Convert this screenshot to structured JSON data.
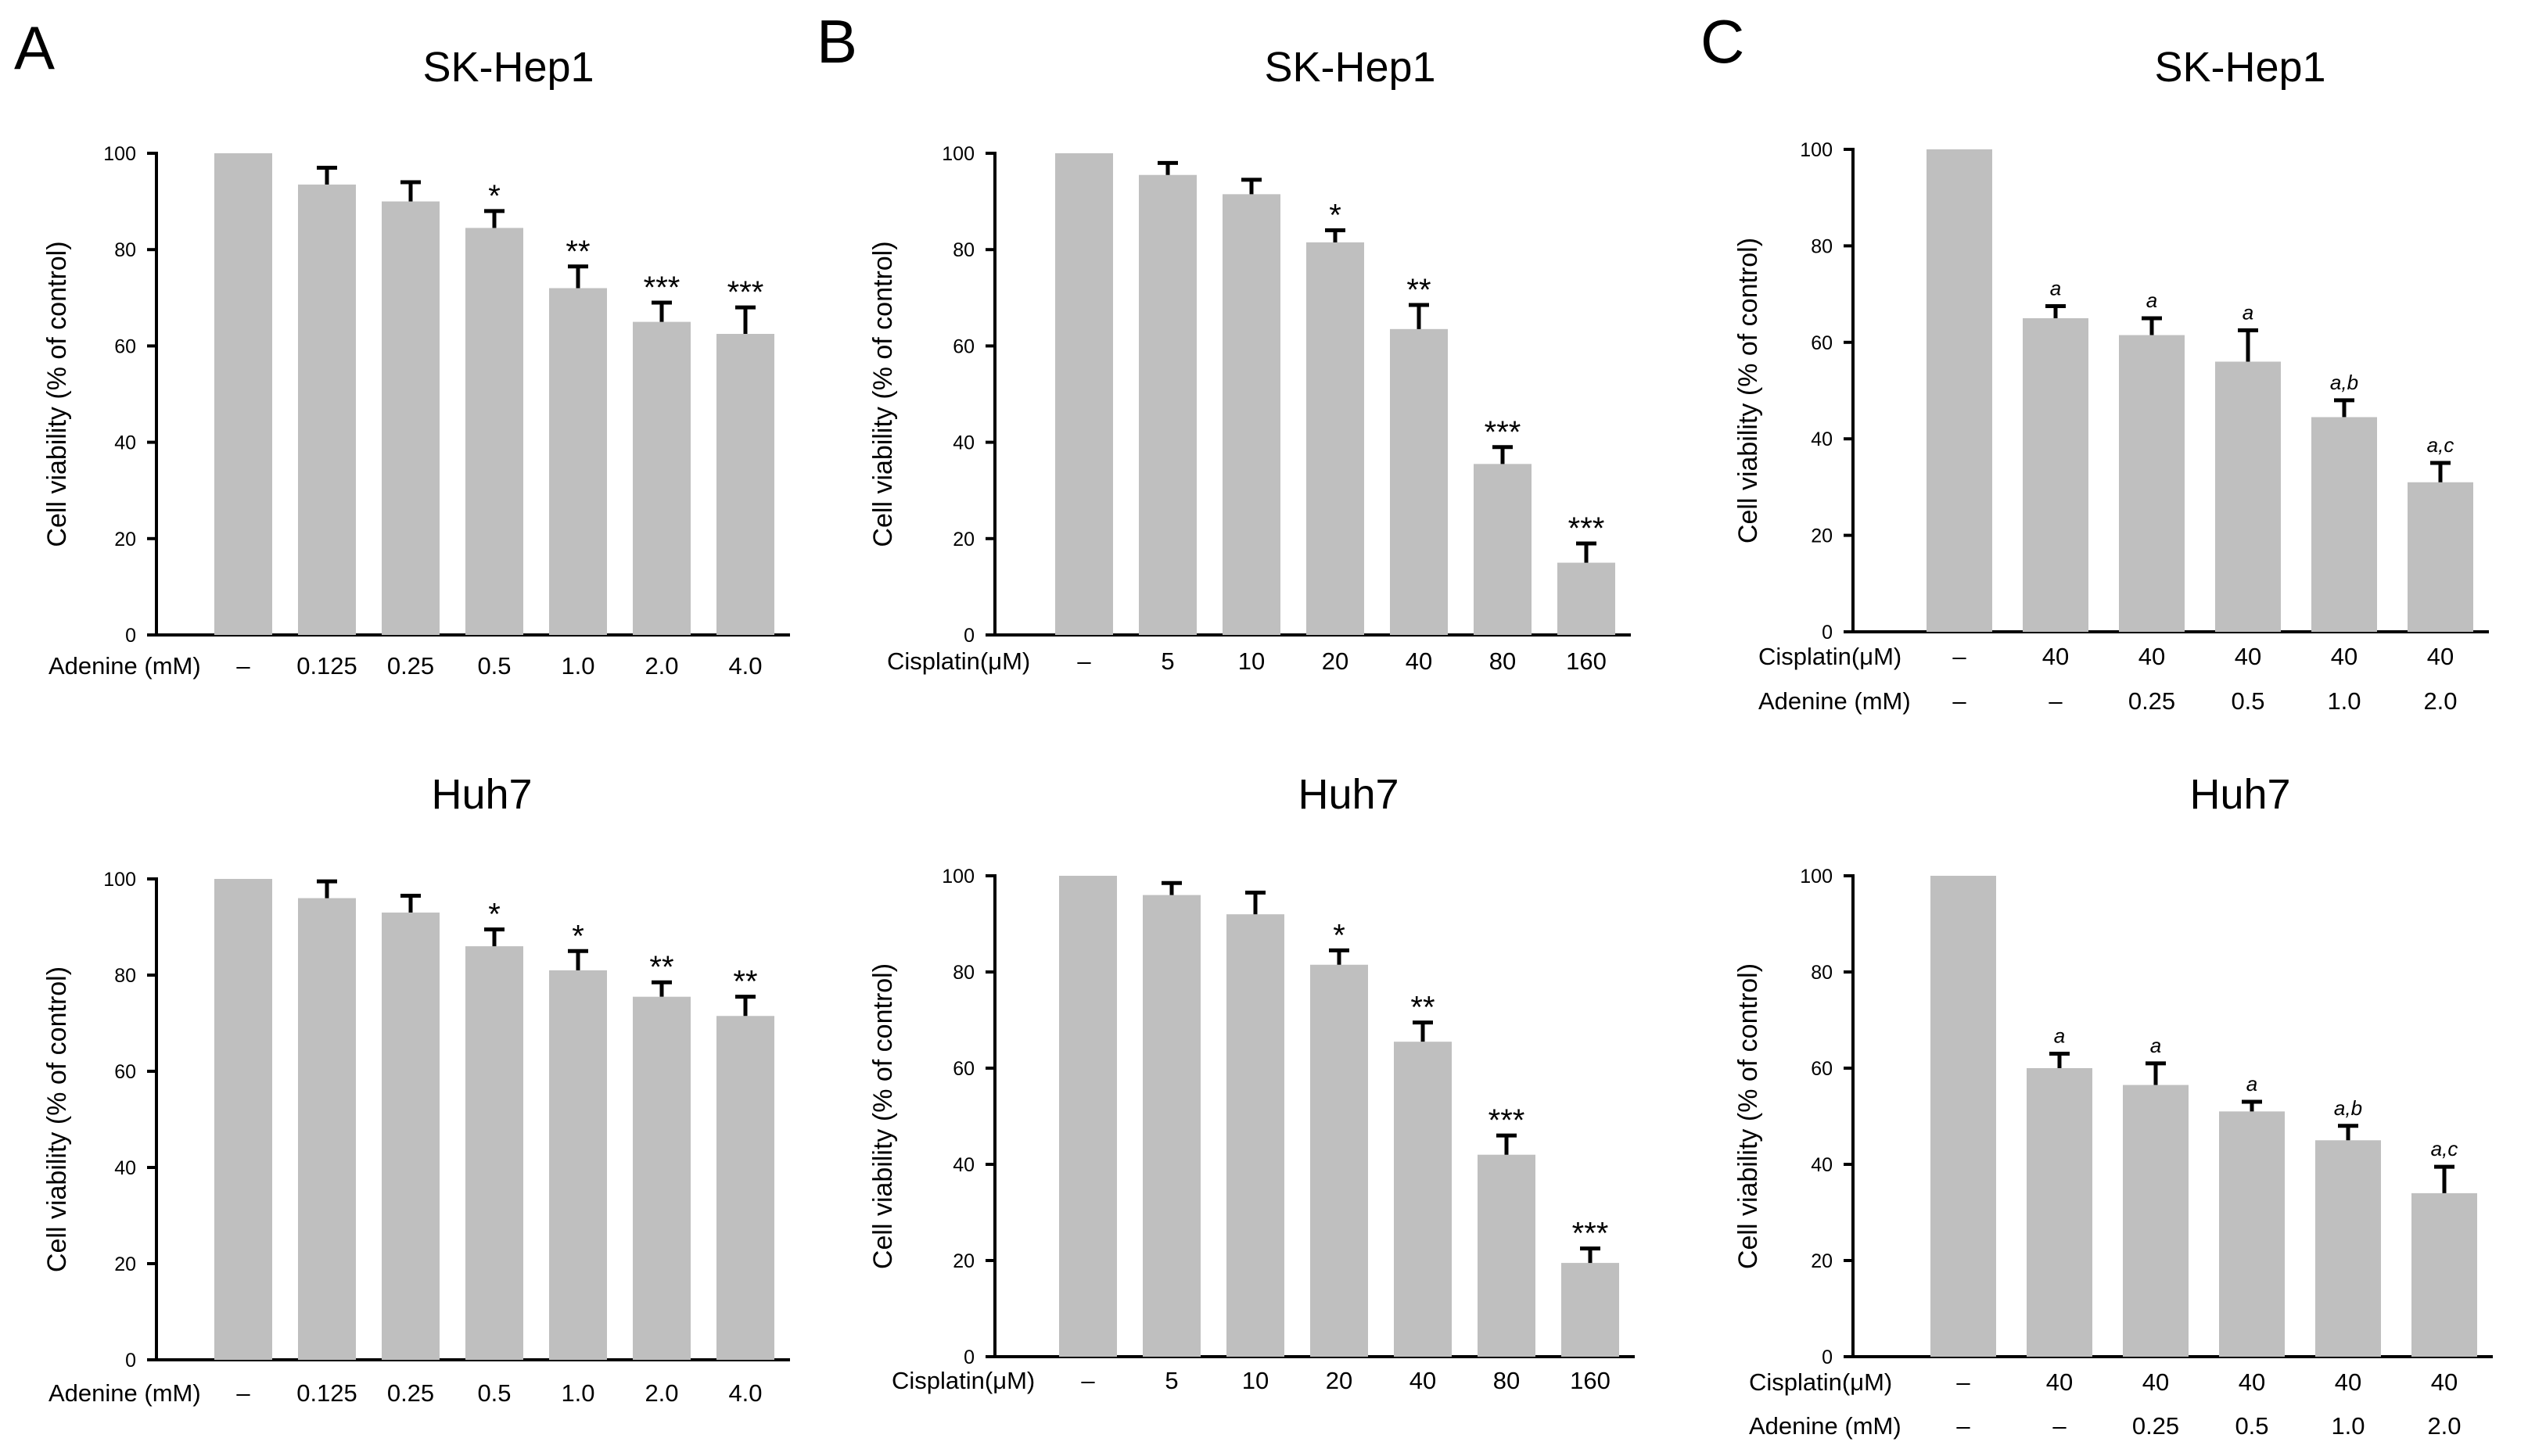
{
  "panel_labels": [
    "A",
    "B",
    "C"
  ],
  "chart_data": [
    {
      "id": "A-top",
      "type": "bar",
      "title": "SK-Hep1",
      "ylabel": "Cell viability (% of control)",
      "ylim": [
        0,
        100
      ],
      "yticks": [
        "0",
        "20",
        "40",
        "60",
        "80",
        "100"
      ],
      "rows": [
        {
          "label": "Adenine (mM)",
          "values": [
            "–",
            "0.125",
            "0.25",
            "0.5",
            "1.0",
            "2.0",
            "4.0"
          ]
        }
      ],
      "values": [
        100,
        93.5,
        90,
        84.5,
        72,
        65,
        62.5
      ],
      "errors": [
        0,
        3.5,
        4,
        3.5,
        4.5,
        4,
        5.5
      ],
      "annotations": [
        "",
        "",
        "",
        "*",
        "**",
        "***",
        "***"
      ]
    },
    {
      "id": "B-top",
      "type": "bar",
      "title": "SK-Hep1",
      "ylabel": "Cell viability (% of control)",
      "ylim": [
        0,
        100
      ],
      "yticks": [
        "0",
        "20",
        "40",
        "60",
        "80",
        "100"
      ],
      "rows": [
        {
          "label": "Cisplatin(μM)",
          "values": [
            "–",
            "5",
            "10",
            "20",
            "40",
            "80",
            "160"
          ]
        }
      ],
      "values": [
        100,
        95.5,
        91.5,
        81.5,
        63.5,
        35.5,
        15
      ],
      "errors": [
        0,
        2.5,
        3,
        2.5,
        5,
        3.5,
        4
      ],
      "annotations": [
        "",
        "",
        "",
        "*",
        "**",
        "***",
        "***"
      ]
    },
    {
      "id": "C-top",
      "type": "bar",
      "title": "SK-Hep1",
      "ylabel": "Cell viability (% of control)",
      "ylim": [
        0,
        100
      ],
      "yticks": [
        "0",
        "20",
        "40",
        "60",
        "80",
        "100"
      ],
      "rows": [
        {
          "label": "Cisplatin(μM)",
          "values": [
            "–",
            "40",
            "40",
            "40",
            "40",
            "40"
          ]
        },
        {
          "label": "Adenine (mM)",
          "values": [
            "–",
            "–",
            "0.25",
            "0.5",
            "1.0",
            "2.0"
          ]
        }
      ],
      "values": [
        100,
        65,
        61.5,
        56,
        44.5,
        31
      ],
      "errors": [
        0,
        2.5,
        3.5,
        6.5,
        3.5,
        4
      ],
      "annotations": [
        "",
        "a",
        "a",
        "a",
        "a,b",
        "a,c"
      ]
    },
    {
      "id": "A-bottom",
      "type": "bar",
      "title": "Huh7",
      "ylabel": "Cell viability (% of control)",
      "ylim": [
        0,
        100
      ],
      "yticks": [
        "0",
        "20",
        "40",
        "60",
        "80",
        "100"
      ],
      "rows": [
        {
          "label": "Adenine (mM)",
          "values": [
            "–",
            "0.125",
            "0.25",
            "0.5",
            "1.0",
            "2.0",
            "4.0"
          ]
        }
      ],
      "values": [
        100,
        96,
        93,
        86,
        81,
        75.5,
        71.5
      ],
      "errors": [
        0,
        3.5,
        3.5,
        3.5,
        4,
        3,
        4
      ],
      "annotations": [
        "",
        "",
        "",
        "*",
        "*",
        "**",
        "**"
      ]
    },
    {
      "id": "B-bottom",
      "type": "bar",
      "title": "Huh7",
      "ylabel": "Cell viability (% of control)",
      "ylim": [
        0,
        100
      ],
      "yticks": [
        "0",
        "20",
        "40",
        "60",
        "80",
        "100"
      ],
      "rows": [
        {
          "label": "Cisplatin(μM)",
          "values": [
            "–",
            "5",
            "10",
            "20",
            "40",
            "80",
            "160"
          ]
        }
      ],
      "values": [
        100,
        96,
        92,
        81.5,
        65.5,
        42,
        19.5
      ],
      "errors": [
        0,
        2.5,
        4.5,
        3,
        4,
        4,
        3
      ],
      "annotations": [
        "",
        "",
        "",
        "*",
        "**",
        "***",
        "***"
      ]
    },
    {
      "id": "C-bottom",
      "type": "bar",
      "title": "Huh7",
      "ylabel": "Cell viability (% of control)",
      "ylim": [
        0,
        100
      ],
      "yticks": [
        "0",
        "20",
        "40",
        "60",
        "80",
        "100"
      ],
      "rows": [
        {
          "label": "Cisplatin(μM)",
          "values": [
            "–",
            "40",
            "40",
            "40",
            "40",
            "40"
          ]
        },
        {
          "label": "Adenine (mM)",
          "values": [
            "–",
            "–",
            "0.25",
            "0.5",
            "1.0",
            "2.0"
          ]
        }
      ],
      "values": [
        100,
        60,
        56.5,
        51,
        45,
        34
      ],
      "errors": [
        0,
        3,
        4.5,
        2,
        3,
        5.5
      ],
      "annotations": [
        "",
        "a",
        "a",
        "a",
        "a,b",
        "a,c"
      ]
    }
  ]
}
